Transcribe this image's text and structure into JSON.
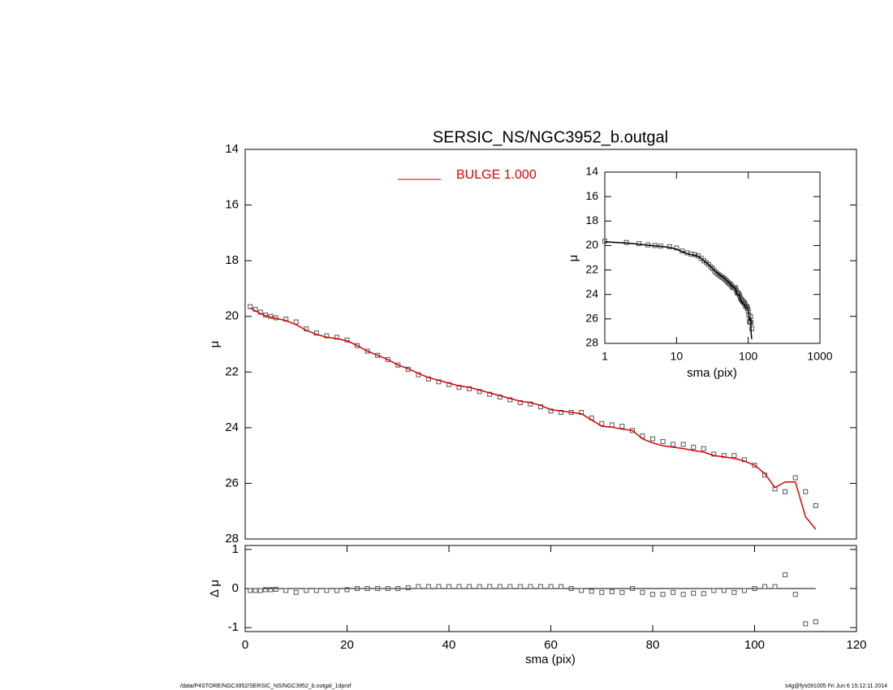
{
  "chart_data": [
    {
      "type": "scatter",
      "title": "SERSIC_NS/NGC3952_b.outgal",
      "ylabel": "μ",
      "x": [
        1,
        2,
        3,
        4,
        5,
        6,
        8,
        10,
        12,
        14,
        16,
        18,
        20,
        22,
        24,
        26,
        28,
        30,
        32,
        34,
        36,
        38,
        40,
        42,
        44,
        46,
        48,
        50,
        52,
        54,
        56,
        58,
        60,
        62,
        64,
        66,
        68,
        70,
        72,
        74,
        76,
        78,
        80,
        82,
        84,
        86,
        88,
        90,
        92,
        94,
        96,
        98,
        100,
        102,
        104,
        106,
        108,
        110,
        112
      ],
      "xlim": [
        0,
        120
      ],
      "ylim": [
        28,
        14
      ],
      "yticks": [
        14,
        16,
        18,
        20,
        22,
        24,
        26,
        28
      ],
      "legend": "top",
      "series": [
        {
          "marker": "square",
          "color": "#555555",
          "values": [
            19.65,
            19.75,
            19.85,
            19.95,
            20.0,
            20.05,
            20.1,
            20.2,
            20.45,
            20.6,
            20.7,
            20.75,
            20.85,
            21.05,
            21.25,
            21.4,
            21.55,
            21.75,
            21.9,
            22.1,
            22.25,
            22.35,
            22.45,
            22.55,
            22.6,
            22.7,
            22.8,
            22.9,
            23.0,
            23.1,
            23.15,
            23.25,
            23.4,
            23.45,
            23.45,
            23.45,
            23.65,
            23.85,
            23.9,
            23.95,
            24.1,
            24.3,
            24.4,
            24.5,
            24.6,
            24.6,
            24.7,
            24.75,
            24.95,
            25.0,
            25.0,
            25.15,
            25.35,
            25.7,
            26.2,
            26.3,
            25.8,
            26.3,
            26.8
          ]
        },
        {
          "marker": "line",
          "name": "BULGE  1.000",
          "color": "#e00000",
          "values": [
            19.7,
            19.8,
            19.9,
            19.98,
            20.03,
            20.07,
            20.15,
            20.3,
            20.5,
            20.65,
            20.75,
            20.8,
            20.88,
            21.05,
            21.25,
            21.4,
            21.55,
            21.75,
            21.88,
            22.05,
            22.2,
            22.3,
            22.4,
            22.5,
            22.55,
            22.65,
            22.75,
            22.85,
            22.95,
            23.05,
            23.1,
            23.2,
            23.35,
            23.4,
            23.45,
            23.5,
            23.72,
            23.95,
            23.98,
            24.05,
            24.1,
            24.4,
            24.55,
            24.65,
            24.7,
            24.75,
            24.82,
            24.88,
            25.0,
            25.05,
            25.1,
            25.2,
            25.35,
            25.65,
            26.15,
            25.95,
            25.95,
            27.2,
            27.65
          ]
        }
      ]
    },
    {
      "type": "residual",
      "xlabel": "sma (pix)",
      "ylabel": "Δ μ",
      "xlim": [
        0,
        120
      ],
      "xticks": [
        0,
        20,
        40,
        60,
        80,
        100,
        120
      ],
      "ylim": [
        -1.1,
        1.1
      ],
      "yticks": [
        1,
        0,
        -1
      ],
      "color": "#555555",
      "values": [
        -0.05,
        -0.05,
        -0.05,
        -0.03,
        -0.03,
        -0.02,
        -0.05,
        -0.1,
        -0.05,
        -0.05,
        -0.05,
        -0.05,
        -0.03,
        0,
        0,
        0,
        0,
        0,
        0.02,
        0.05,
        0.05,
        0.05,
        0.05,
        0.05,
        0.05,
        0.05,
        0.05,
        0.05,
        0.05,
        0.05,
        0.05,
        0.05,
        0.05,
        0.05,
        0,
        -0.05,
        -0.07,
        -0.1,
        -0.08,
        -0.1,
        0,
        -0.1,
        -0.15,
        -0.15,
        -0.1,
        -0.15,
        -0.12,
        -0.13,
        -0.05,
        -0.05,
        -0.1,
        -0.05,
        0,
        0.05,
        0.05,
        0.35,
        -0.15,
        -0.9,
        -0.85
      ]
    },
    {
      "type": "inset",
      "xlabel": "sma (pix)",
      "ylabel": "μ",
      "xscale": "log",
      "xlim": [
        1,
        1000
      ],
      "xticks": [
        1,
        10,
        100,
        1000
      ],
      "ylim": [
        28,
        14
      ],
      "yticks": [
        14,
        16,
        18,
        20,
        22,
        24,
        26,
        28
      ],
      "color": "#000000"
    }
  ],
  "footer": {
    "left": "/data/P4STORE/NGC3952/SERSIC_NS/NGC3952_b.outgal_1dprof",
    "right": "s4g@fys091005  Fri Jun  6 15:12:11 2014"
  }
}
